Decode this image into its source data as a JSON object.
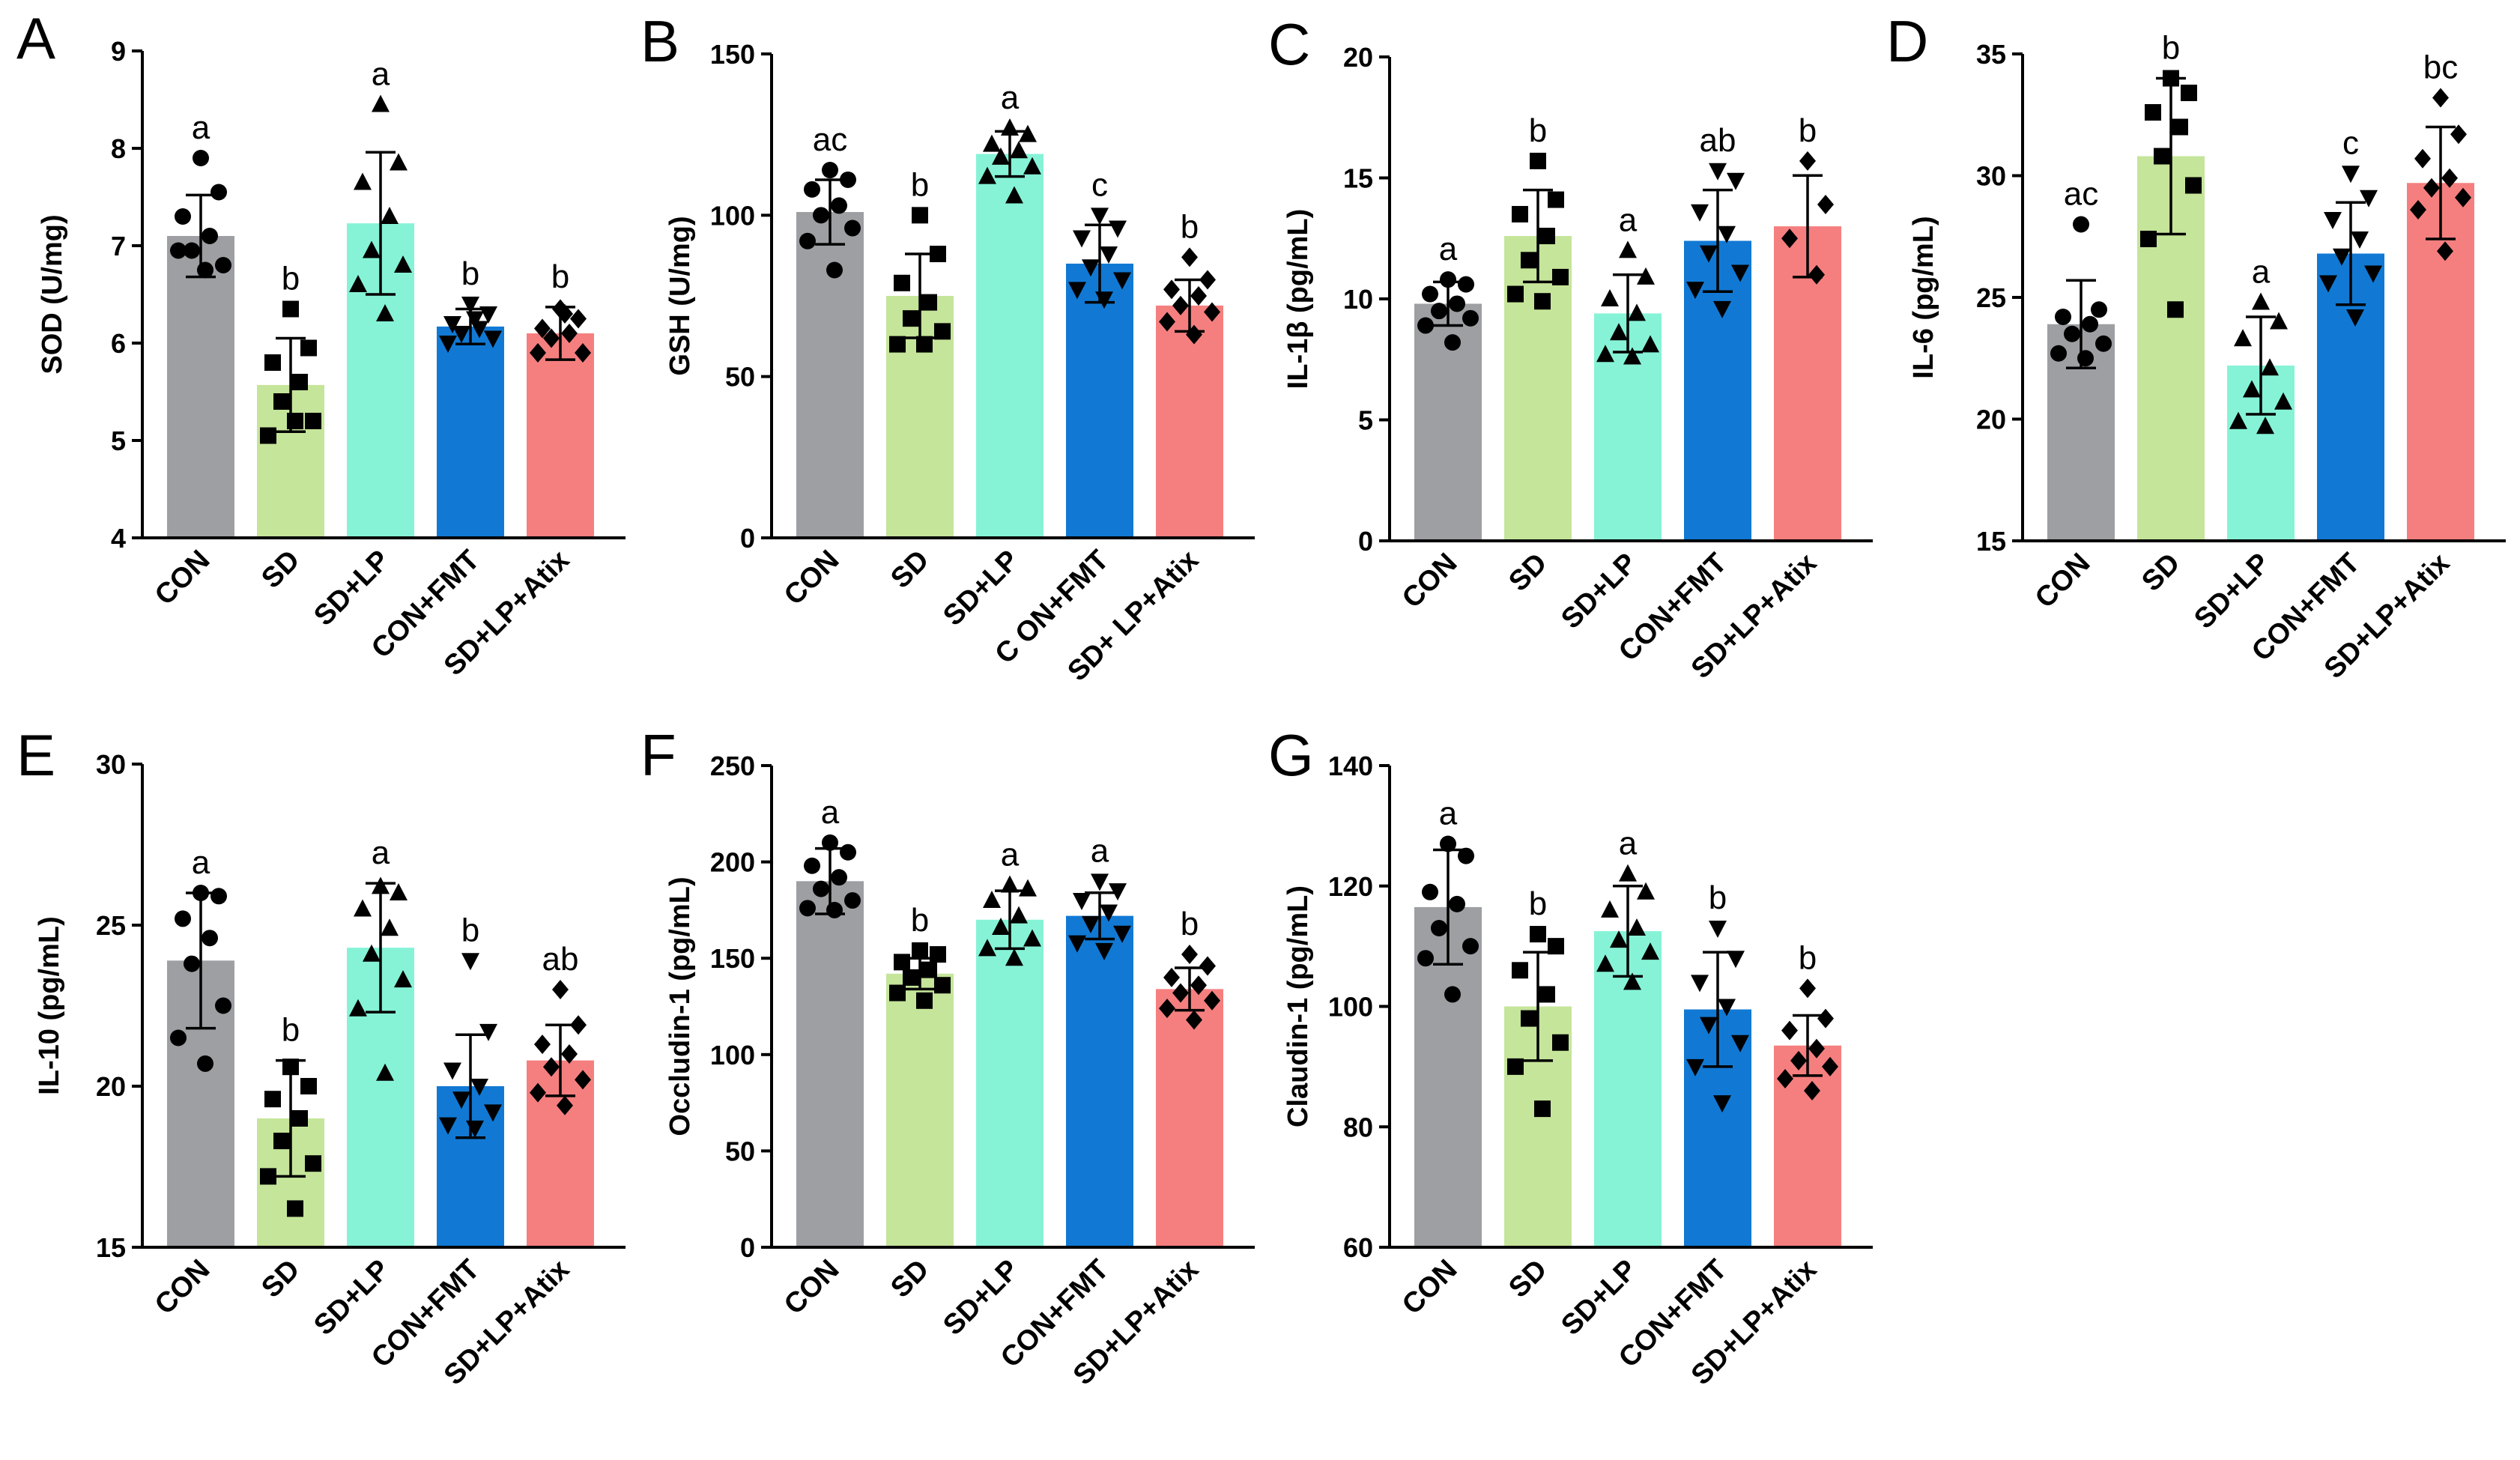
{
  "colors": {
    "CON": "#9e9fa3",
    "SD": "#c5e59a",
    "SD+LP": "#86f3d7",
    "CON+FMT": "#1179d4",
    "SD+LP+Atix": "#f57f7f"
  },
  "chart_data": [
    {
      "type": "bar",
      "panel": "A",
      "ylabel": "SOD (U/mg)",
      "ylim": [
        4,
        9
      ],
      "yticks": [
        "4",
        "5",
        "6",
        "7",
        "8",
        "9"
      ],
      "categories": [
        "CON",
        "SD",
        "SD+LP",
        "CON+FMT",
        "SD+LP+Atix"
      ],
      "values": [
        7.1,
        5.57,
        7.23,
        6.17,
        6.1
      ],
      "errors": [
        0.42,
        0.48,
        0.73,
        0.18,
        0.27
      ],
      "significance": [
        "a",
        "b",
        "a",
        "b",
        "b"
      ],
      "markers": [
        "circle",
        "square",
        "triangle-up",
        "triangle-down",
        "diamond"
      ],
      "points": [
        [
          7.9,
          7.55,
          7.3,
          7.1,
          6.95,
          6.8,
          6.95,
          6.75
        ],
        [
          6.35,
          5.95,
          5.8,
          5.6,
          5.4,
          5.2,
          5.05,
          5.2
        ],
        [
          8.45,
          7.85,
          7.65,
          7.3,
          6.95,
          6.8,
          6.6,
          6.3
        ],
        [
          6.4,
          6.3,
          6.2,
          6.15,
          6.1,
          6.05,
          6.0,
          6.25
        ],
        [
          6.35,
          6.25,
          6.15,
          6.1,
          6.05,
          5.9,
          5.9,
          6.3
        ]
      ]
    },
    {
      "type": "bar",
      "panel": "B",
      "ylabel": "GSH (U/mg)",
      "ylim": [
        0,
        150
      ],
      "yticks": [
        "0",
        "50",
        "100",
        "150"
      ],
      "categories": [
        "CON",
        "SD",
        "SD+LP",
        "C ON+FMT",
        "SD+ LP+Atix"
      ],
      "values": [
        101,
        75,
        119,
        85,
        72
      ],
      "errors": [
        10,
        13,
        7,
        12,
        8
      ],
      "significance": [
        "ac",
        "b",
        "a",
        "c",
        "b"
      ],
      "markers": [
        "circle",
        "square",
        "triangle-up",
        "triangle-down",
        "diamond"
      ],
      "points": [
        [
          114,
          111,
          108,
          103,
          100,
          96,
          92,
          83
        ],
        [
          100,
          88,
          79,
          73,
          68,
          64,
          60,
          60
        ],
        [
          127,
          125,
          122,
          120,
          118,
          115,
          112,
          106
        ],
        [
          100,
          96,
          93,
          88,
          84,
          80,
          77,
          74
        ],
        [
          87,
          80,
          77,
          75,
          72,
          70,
          67,
          63
        ]
      ]
    },
    {
      "type": "bar",
      "panel": "C",
      "ylabel": "IL-1β (pg/mL)",
      "ylim": [
        0,
        20
      ],
      "yticks": [
        "0",
        "5",
        "10",
        "15",
        "20"
      ],
      "categories": [
        "CON",
        "SD",
        "SD+LP",
        "CON+FMT",
        "SD+LP+Atix"
      ],
      "values": [
        9.8,
        12.6,
        9.4,
        12.4,
        13.0
      ],
      "errors": [
        0.9,
        1.9,
        1.6,
        2.1,
        2.1
      ],
      "significance": [
        "a",
        "b",
        "a",
        "ab",
        "b"
      ],
      "markers": [
        "circle",
        "square",
        "triangle-up",
        "triangle-down",
        "diamond"
      ],
      "points": [
        [
          10.8,
          10.6,
          10.2,
          9.8,
          9.5,
          9.2,
          8.9,
          8.2
        ],
        [
          15.7,
          14.1,
          13.5,
          12.6,
          11.6,
          10.9,
          10.2,
          9.9
        ],
        [
          12.0,
          10.9,
          10.0,
          9.4,
          8.6,
          8.1,
          7.7,
          7.6
        ],
        [
          15.3,
          14.9,
          13.6,
          12.7,
          11.9,
          11.1,
          10.4,
          9.6
        ],
        [
          15.7,
          13.9,
          12.5,
          11.0
        ]
      ]
    },
    {
      "type": "bar",
      "panel": "D",
      "ylabel": "IL-6 (pg/mL)",
      "ylim": [
        15,
        35
      ],
      "yticks": [
        "15",
        "20",
        "25",
        "30",
        "35"
      ],
      "categories": [
        "CON",
        "SD",
        "SD+LP",
        "CON+FMT",
        "SD+LP+Atix"
      ],
      "values": [
        23.9,
        30.8,
        22.2,
        26.8,
        29.7
      ],
      "errors": [
        1.8,
        3.2,
        2.0,
        2.1,
        2.3
      ],
      "significance": [
        "ac",
        "b",
        "a",
        "c",
        "bc"
      ],
      "markers": [
        "circle",
        "square",
        "triangle-up",
        "triangle-down",
        "diamond"
      ],
      "points": [
        [
          28.0,
          24.5,
          24.2,
          23.9,
          23.5,
          23.1,
          22.7,
          22.5
        ],
        [
          34.0,
          33.4,
          32.6,
          32.0,
          30.8,
          29.6,
          27.4,
          24.5
        ],
        [
          24.8,
          24.0,
          23.3,
          22.1,
          21.2,
          20.7,
          19.9,
          19.7
        ],
        [
          30.1,
          29.1,
          28.2,
          27.4,
          26.7,
          26.0,
          25.6,
          24.2
        ],
        [
          33.2,
          31.7,
          30.7,
          29.9,
          29.5,
          29.1,
          28.6,
          26.9
        ]
      ]
    },
    {
      "type": "bar",
      "panel": "E",
      "ylabel": "IL-10 (pg/mL)",
      "ylim": [
        15,
        30
      ],
      "yticks": [
        "15",
        "20",
        "25",
        "30"
      ],
      "categories": [
        "CON",
        "SD",
        "SD+LP",
        "CON+FMT",
        "SD+LP+Atix"
      ],
      "values": [
        23.9,
        19.0,
        24.3,
        20.0,
        20.8
      ],
      "errors": [
        2.1,
        1.8,
        2.0,
        1.6,
        1.1
      ],
      "significance": [
        "a",
        "b",
        "a",
        "b",
        "ab"
      ],
      "markers": [
        "circle",
        "square",
        "triangle-up",
        "triangle-down",
        "diamond"
      ],
      "points": [
        [
          26.0,
          25.9,
          25.2,
          24.6,
          23.8,
          22.5,
          21.5,
          20.7
        ],
        [
          20.6,
          20.0,
          19.6,
          19.0,
          18.3,
          17.6,
          17.2,
          16.2
        ],
        [
          26.2,
          26.0,
          25.5,
          24.9,
          24.1,
          23.3,
          22.4,
          20.4
        ],
        [
          23.9,
          21.7,
          20.5,
          20.0,
          19.6,
          19.2,
          18.8,
          18.7
        ],
        [
          23.0,
          21.9,
          21.3,
          21.0,
          20.6,
          20.2,
          19.8,
          19.4
        ]
      ]
    },
    {
      "type": "bar",
      "panel": "F",
      "ylabel": "Occludin-1 (pg/mL)",
      "ylim": [
        0,
        250
      ],
      "yticks": [
        "0",
        "50",
        "100",
        "150",
        "200",
        "250"
      ],
      "categories": [
        "CON",
        "SD",
        "SD+LP",
        "CON+FMT",
        "SD+LP+Atix"
      ],
      "values": [
        190,
        142,
        170,
        172,
        134
      ],
      "errors": [
        17,
        8,
        15,
        12,
        11
      ],
      "significance": [
        "a",
        "b",
        "a",
        "a",
        "b"
      ],
      "markers": [
        "circle",
        "square",
        "triangle-up",
        "triangle-down",
        "diamond"
      ],
      "points": [
        [
          210,
          205,
          198,
          192,
          186,
          180,
          176,
          175
        ],
        [
          154,
          152,
          148,
          144,
          140,
          136,
          132,
          128
        ],
        [
          188,
          186,
          180,
          172,
          166,
          160,
          155,
          150
        ],
        [
          190,
          185,
          180,
          174,
          168,
          163,
          158,
          154
        ],
        [
          152,
          146,
          140,
          136,
          132,
          128,
          124,
          118
        ]
      ]
    },
    {
      "type": "bar",
      "panel": "G",
      "ylabel": "Claudin-1 (pg/mL)",
      "ylim": [
        60,
        140
      ],
      "yticks": [
        "60",
        "80",
        "100",
        "120",
        "140"
      ],
      "categories": [
        "CON",
        "SD",
        "SD+LP",
        "CON+FMT",
        "SD+LP+Atix"
      ],
      "values": [
        116.5,
        100,
        112.5,
        99.5,
        93.5
      ],
      "errors": [
        9.5,
        9,
        7.5,
        9.5,
        5
      ],
      "significance": [
        "a",
        "b",
        "a",
        "b",
        "b"
      ],
      "markers": [
        "circle",
        "square",
        "triangle-up",
        "triangle-down",
        "diamond"
      ],
      "points": [
        [
          127,
          125,
          119,
          117,
          113,
          110,
          108,
          102
        ],
        [
          112,
          110,
          106,
          102,
          98,
          94,
          90,
          83
        ],
        [
          122,
          119,
          116,
          113,
          111,
          109,
          107,
          104
        ],
        [
          113,
          108,
          104,
          100,
          97,
          94,
          90,
          84
        ],
        [
          103,
          98,
          96,
          93,
          91,
          90,
          88,
          86
        ]
      ]
    }
  ]
}
